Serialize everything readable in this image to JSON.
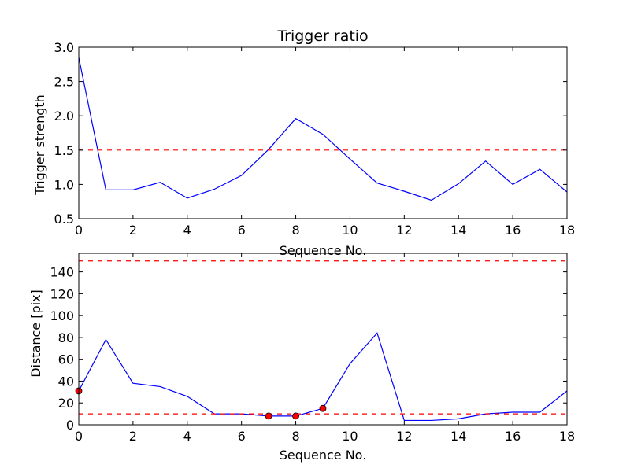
{
  "chart_data": [
    {
      "type": "line",
      "title": "Trigger ratio",
      "xlabel": "Sequence No.",
      "ylabel": "Trigger strength",
      "xlim": [
        0,
        18
      ],
      "ylim": [
        0.5,
        3.0
      ],
      "xticks": [
        "0",
        "2",
        "4",
        "6",
        "8",
        "10",
        "12",
        "14",
        "16",
        "18"
      ],
      "yticks": [
        "0.5",
        "1.0",
        "1.5",
        "2.0",
        "2.5",
        "3.0"
      ],
      "grid": false,
      "series": [
        {
          "color": "#0000ff",
          "x": [
            0,
            1,
            2,
            3,
            4,
            5,
            6,
            7,
            8,
            9,
            10,
            11,
            12,
            13,
            14,
            15,
            16,
            17,
            18
          ],
          "values": [
            2.85,
            0.92,
            0.92,
            1.03,
            0.8,
            0.93,
            1.13,
            1.51,
            1.96,
            1.73,
            1.37,
            1.02,
            0.9,
            0.77,
            1.01,
            1.34,
            1.0,
            1.22,
            0.89
          ]
        }
      ],
      "hlines": [
        {
          "y": 1.5,
          "color": "#ff0000",
          "style": "dashed"
        }
      ]
    },
    {
      "type": "line",
      "title": "",
      "xlabel": "Sequence No.",
      "ylabel": "Distance [pix]",
      "xlim": [
        0,
        18
      ],
      "ylim": [
        0,
        157
      ],
      "xticks": [
        "0",
        "2",
        "4",
        "6",
        "8",
        "10",
        "12",
        "14",
        "16",
        "18"
      ],
      "yticks": [
        "0",
        "20",
        "40",
        "60",
        "80",
        "100",
        "120",
        "140"
      ],
      "grid": false,
      "series": [
        {
          "color": "#0000ff",
          "x": [
            0,
            1,
            2,
            3,
            4,
            5,
            6,
            7,
            8,
            9,
            10,
            11,
            12,
            13,
            14,
            15,
            16,
            17,
            18
          ],
          "values": [
            31,
            78,
            38,
            35,
            26,
            10,
            10,
            8,
            8,
            15,
            56,
            84,
            4,
            4,
            5.5,
            10,
            11.5,
            11.5,
            31
          ]
        }
      ],
      "markers": {
        "color": "#ff0000",
        "x": [
          0,
          7,
          8,
          9
        ],
        "values": [
          31,
          8,
          8,
          15
        ]
      },
      "hlines": [
        {
          "y": 150,
          "color": "#ff0000",
          "style": "dashed"
        },
        {
          "y": 10,
          "color": "#ff0000",
          "style": "dashed"
        }
      ]
    }
  ]
}
